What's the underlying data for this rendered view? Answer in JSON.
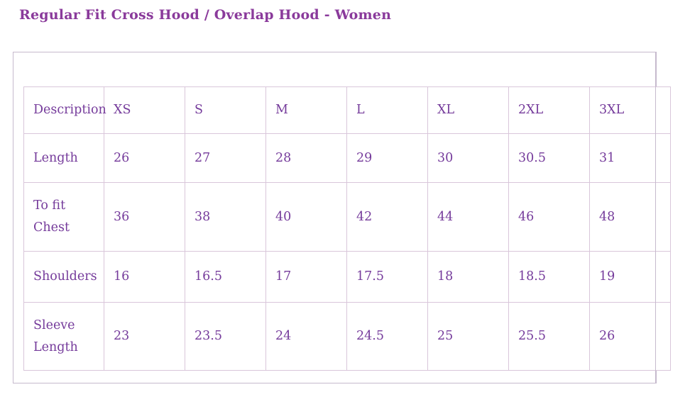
{
  "page_title": "Regular Fit Cross Hood / Overlap Hood - Women",
  "colors": {
    "title_text": "#8a3a9b",
    "table_text": "#753b9b",
    "table_border": "#d9c6da",
    "panel_border": "#c6bacd",
    "background": "#ffffff"
  },
  "size_chart": {
    "columns": [
      "Description",
      "XS",
      "S",
      "M",
      "L",
      "XL",
      "2XL",
      "3XL"
    ],
    "rows": [
      {
        "label": "Length",
        "values": [
          "26",
          "27",
          "28",
          "29",
          "30",
          "30.5",
          "31"
        ]
      },
      {
        "label": "To fit Chest",
        "values": [
          "36",
          "38",
          "40",
          "42",
          "44",
          "46",
          "48"
        ]
      },
      {
        "label": "Shoulders",
        "values": [
          "16",
          "16.5",
          "17",
          "17.5",
          "18",
          "18.5",
          "19"
        ]
      },
      {
        "label": "Sleeve Length",
        "values": [
          "23",
          "23.5",
          "24",
          "24.5",
          "25",
          "25.5",
          "26"
        ]
      }
    ]
  },
  "chart_data": {
    "type": "table",
    "title": "Regular Fit Cross Hood / Overlap Hood - Women",
    "categories": [
      "XS",
      "S",
      "M",
      "L",
      "XL",
      "2XL",
      "3XL"
    ],
    "series": [
      {
        "name": "Length",
        "values": [
          26,
          27,
          28,
          29,
          30,
          30.5,
          31
        ]
      },
      {
        "name": "To fit Chest",
        "values": [
          36,
          38,
          40,
          42,
          44,
          46,
          48
        ]
      },
      {
        "name": "Shoulders",
        "values": [
          16,
          16.5,
          17,
          17.5,
          18,
          18.5,
          19
        ]
      },
      {
        "name": "Sleeve Length",
        "values": [
          23,
          23.5,
          24,
          24.5,
          25,
          25.5,
          26
        ]
      }
    ]
  }
}
